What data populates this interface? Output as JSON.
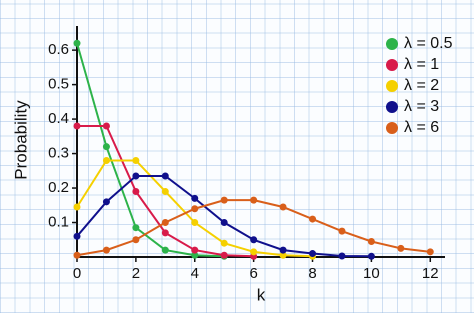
{
  "chart_data": {
    "type": "line",
    "x_label": "k",
    "y_label": "Probability",
    "x": [
      0,
      1,
      2,
      3,
      4,
      5,
      6,
      7,
      8,
      9,
      10,
      11,
      12
    ],
    "series": [
      {
        "name": "λ = 0.5",
        "color": "#2db34a",
        "values": [
          0.62,
          0.32,
          0.085,
          0.02,
          0.005,
          0.002,
          null,
          null,
          null,
          null,
          null,
          null,
          null
        ]
      },
      {
        "name": "λ = 1",
        "color": "#d81b4a",
        "values": [
          0.38,
          0.38,
          0.19,
          0.07,
          0.02,
          0.005,
          0.002,
          null,
          null,
          null,
          null,
          null,
          null
        ]
      },
      {
        "name": "λ = 2",
        "color": "#f5d000",
        "values": [
          0.145,
          0.28,
          0.28,
          0.19,
          0.1,
          0.04,
          0.015,
          0.005,
          0.002,
          null,
          null,
          null,
          null
        ]
      },
      {
        "name": "λ = 3",
        "color": "#10108c",
        "values": [
          0.06,
          0.16,
          0.235,
          0.235,
          0.17,
          0.1,
          0.05,
          0.02,
          0.01,
          0.003,
          0.002,
          null,
          null
        ]
      },
      {
        "name": "λ = 6",
        "color": "#d95f1a",
        "values": [
          0.005,
          0.02,
          0.05,
          0.1,
          0.14,
          0.165,
          0.165,
          0.145,
          0.11,
          0.075,
          0.045,
          0.025,
          0.015
        ]
      }
    ],
    "xlim": [
      0,
      12.5
    ],
    "ylim": [
      0,
      0.67
    ],
    "xticks": [
      0,
      2,
      4,
      6,
      8,
      10,
      12
    ],
    "yticks": [
      0.1,
      0.2,
      0.3,
      0.4,
      0.5,
      0.6
    ],
    "legend": "upper right"
  }
}
